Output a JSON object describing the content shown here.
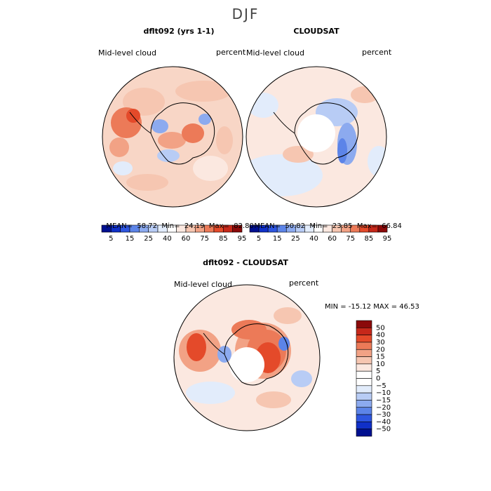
{
  "page": {
    "title": "DJF"
  },
  "colors": {
    "red_scale": [
      "#fbe8e0",
      "#f6c6b1",
      "#f2a285",
      "#ec7a58",
      "#e44a2a",
      "#c6281a",
      "#8b0a0a"
    ],
    "blue_scale": [
      "#e2ecfb",
      "#b8ccf5",
      "#8caaef",
      "#5c84e8",
      "#2e56e0",
      "#1030c8",
      "#001090"
    ]
  },
  "panels": [
    {
      "title": "dflt092 (yrs 1-1)",
      "variable": "Mid-level cloud",
      "units": "percent",
      "stats": {
        "mean_label": "MEAN=",
        "mean": "58.72",
        "min_label": "Min=",
        "min": "24.19",
        "max_label": "Max=",
        "max": "82.80"
      },
      "colorbar_ticks": [
        "5",
        "15",
        "25",
        "40",
        "60",
        "75",
        "85",
        "95"
      ]
    },
    {
      "title": "CLOUDSAT",
      "variable": "Mid-level cloud",
      "units": "percent",
      "stats": {
        "mean_label": "MEAN=",
        "mean": "50.82",
        "min_label": "Min=",
        "min": "23.85",
        "max_label": "Max=",
        "max": "66.84"
      },
      "colorbar_ticks": [
        "5",
        "15",
        "25",
        "40",
        "60",
        "75",
        "85",
        "95"
      ]
    }
  ],
  "difference": {
    "title": "dflt092 - CLOUDSAT",
    "variable": "Mid-level cloud",
    "units": "percent",
    "min_max_text": "MIN = -15.12 MAX =  46.53",
    "colorbar_ticks": [
      "50",
      "40",
      "30",
      "20",
      "15",
      "10",
      "5",
      "0",
      "−5",
      "−10",
      "−15",
      "−20",
      "−30",
      "−40",
      "−50"
    ]
  },
  "chart_data": [
    {
      "type": "heatmap",
      "title": "dflt092 (yrs 1-1)",
      "projection": "south polar stereographic",
      "variable": "Mid-level cloud",
      "units": "percent",
      "mean": 58.72,
      "min": 24.19,
      "max": 82.8,
      "levels": [
        5,
        15,
        25,
        40,
        60,
        75,
        85,
        95
      ]
    },
    {
      "type": "heatmap",
      "title": "CLOUDSAT",
      "projection": "south polar stereographic",
      "variable": "Mid-level cloud",
      "units": "percent",
      "mean": 50.82,
      "min": 23.85,
      "max": 66.84,
      "levels": [
        5,
        15,
        25,
        40,
        60,
        75,
        85,
        95
      ]
    },
    {
      "type": "heatmap",
      "title": "dflt092 - CLOUDSAT",
      "projection": "south polar stereographic",
      "variable": "Mid-level cloud",
      "units": "percent",
      "min": -15.12,
      "max": 46.53,
      "levels": [
        -50,
        -40,
        -30,
        -20,
        -15,
        -10,
        -5,
        0,
        5,
        10,
        15,
        20,
        30,
        40,
        50
      ]
    }
  ]
}
